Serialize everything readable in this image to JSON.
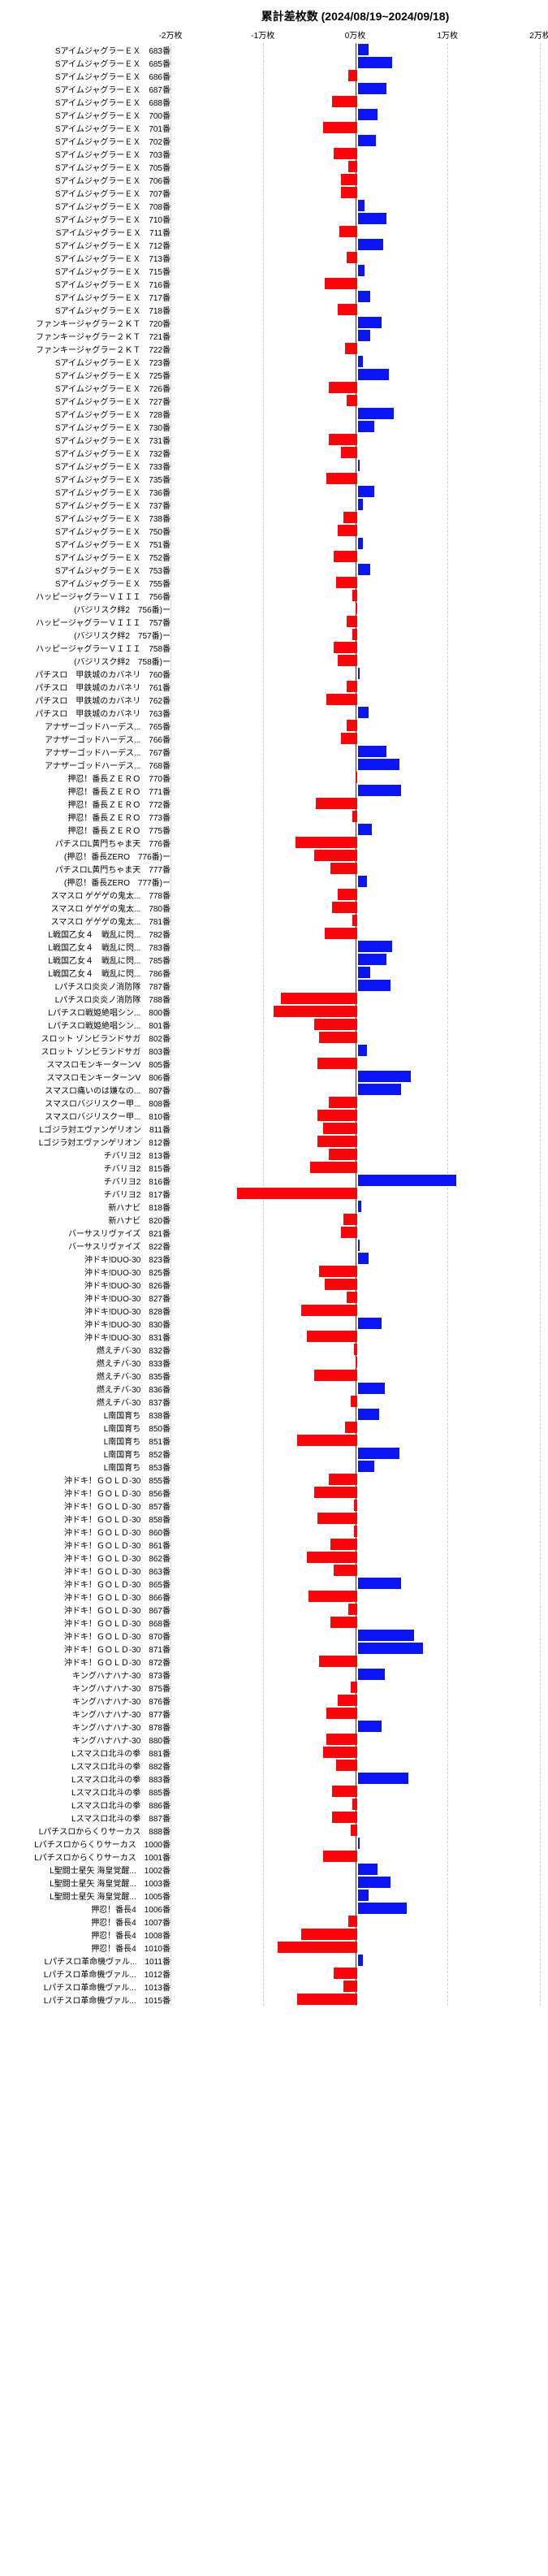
{
  "title": "累計差枚数 (2024/08/19~2024/09/18)",
  "axis": {
    "labels": [
      "-2万枚",
      "-1万枚",
      "0万枚",
      "1万枚",
      "2万枚"
    ],
    "positions_pct": [
      0,
      25,
      50,
      75,
      100
    ],
    "xlim": [
      -20000,
      20000
    ],
    "grid_color": "#cccccc",
    "zero_color": "#333333"
  },
  "colors": {
    "positive": "#0a16f5",
    "negative": "#fa0509",
    "background": "#ffffff"
  },
  "typography": {
    "label_fontsize": 10,
    "title_fontsize": 14
  },
  "rows": [
    {
      "label": "SアイムジャグラーＥＸ　683番",
      "value": 1200
    },
    {
      "label": "SアイムジャグラーＥＸ　685番",
      "value": 3800
    },
    {
      "label": "SアイムジャグラーＥＸ　686番",
      "value": -1000
    },
    {
      "label": "SアイムジャグラーＥＸ　687番",
      "value": 3200
    },
    {
      "label": "SアイムジャグラーＥＸ　688番",
      "value": -2800
    },
    {
      "label": "SアイムジャグラーＥＸ　700番",
      "value": 2200
    },
    {
      "label": "SアイムジャグラーＥＸ　701番",
      "value": -3800
    },
    {
      "label": "SアイムジャグラーＥＸ　702番",
      "value": 2000
    },
    {
      "label": "SアイムジャグラーＥＸ　703番",
      "value": -2600
    },
    {
      "label": "SアイムジャグラーＥＸ　705番",
      "value": -1000
    },
    {
      "label": "SアイムジャグラーＥＸ　706番",
      "value": -1800
    },
    {
      "label": "SアイムジャグラーＥＸ　707番",
      "value": -1800
    },
    {
      "label": "SアイムジャグラーＥＸ　708番",
      "value": 800
    },
    {
      "label": "SアイムジャグラーＥＸ　710番",
      "value": 3200
    },
    {
      "label": "SアイムジャグラーＥＸ　711番",
      "value": -2000
    },
    {
      "label": "SアイムジャグラーＥＸ　712番",
      "value": 2800
    },
    {
      "label": "SアイムジャグラーＥＸ　713番",
      "value": -1200
    },
    {
      "label": "SアイムジャグラーＥＸ　715番",
      "value": 800
    },
    {
      "label": "SアイムジャグラーＥＸ　716番",
      "value": -3600
    },
    {
      "label": "SアイムジャグラーＥＸ　717番",
      "value": 1400
    },
    {
      "label": "SアイムジャグラーＥＸ　718番",
      "value": -2200
    },
    {
      "label": "ファンキージャグラー２ＫＴ　720番",
      "value": 2600
    },
    {
      "label": "ファンキージャグラー２ＫＴ　721番",
      "value": 1400
    },
    {
      "label": "ファンキージャグラー２ＫＴ　722番",
      "value": -1400
    },
    {
      "label": "SアイムジャグラーＥＸ　723番",
      "value": 600
    },
    {
      "label": "SアイムジャグラーＥＸ　725番",
      "value": 3400
    },
    {
      "label": "SアイムジャグラーＥＸ　726番",
      "value": -3200
    },
    {
      "label": "SアイムジャグラーＥＸ　727番",
      "value": -1200
    },
    {
      "label": "SアイムジャグラーＥＸ　728番",
      "value": 4000
    },
    {
      "label": "SアイムジャグラーＥＸ　730番",
      "value": 1800
    },
    {
      "label": "SアイムジャグラーＥＸ　731番",
      "value": -3200
    },
    {
      "label": "SアイムジャグラーＥＸ　732番",
      "value": -1800
    },
    {
      "label": "SアイムジャグラーＥＸ　733番",
      "value": 200
    },
    {
      "label": "SアイムジャグラーＥＸ　735番",
      "value": -3400
    },
    {
      "label": "SアイムジャグラーＥＸ　736番",
      "value": 1800
    },
    {
      "label": "SアイムジャグラーＥＸ　737番",
      "value": 600
    },
    {
      "label": "SアイムジャグラーＥＸ　738番",
      "value": -1600
    },
    {
      "label": "SアイムジャグラーＥＸ　750番",
      "value": -2200
    },
    {
      "label": "SアイムジャグラーＥＸ　751番",
      "value": 600
    },
    {
      "label": "SアイムジャグラーＥＸ　752番",
      "value": -2600
    },
    {
      "label": "SアイムジャグラーＥＸ　753番",
      "value": 1400
    },
    {
      "label": "SアイムジャグラーＥＸ　755番",
      "value": -2400
    },
    {
      "label": "ハッピージャグラーＶＩＩＩ　756番",
      "value": -600
    },
    {
      "label": "(バジリスク絆2　756番)ー",
      "value": -200
    },
    {
      "label": "ハッピージャグラーＶＩＩＩ　757番",
      "value": -1200
    },
    {
      "label": "(バジリスク絆2　757番)ー",
      "value": -600
    },
    {
      "label": "ハッピージャグラーＶＩＩＩ　758番",
      "value": -2600
    },
    {
      "label": "(バジリスク絆2　758番)ー",
      "value": -2200
    },
    {
      "label": "パチスロ　甲鉄城のカバネリ　760番",
      "value": 200
    },
    {
      "label": "パチスロ　甲鉄城のカバネリ　761番",
      "value": -1200
    },
    {
      "label": "パチスロ　甲鉄城のカバネリ　762番",
      "value": -3400
    },
    {
      "label": "パチスロ　甲鉄城のカバネリ　763番",
      "value": 1200
    },
    {
      "label": "アナザーゴッドハーデス...　765番",
      "value": -1200
    },
    {
      "label": "アナザーゴッドハーデス...　766番",
      "value": -1800
    },
    {
      "label": "アナザーゴッドハーデス...　767番",
      "value": 3200
    },
    {
      "label": "アナザーゴッドハーデス...　768番",
      "value": 4600
    },
    {
      "label": "押忍！番長ＺＥＲＯ　770番",
      "value": -200
    },
    {
      "label": "押忍！番長ＺＥＲＯ　771番",
      "value": 4800
    },
    {
      "label": "押忍！番長ＺＥＲＯ　772番",
      "value": -4600
    },
    {
      "label": "押忍！番長ＺＥＲＯ　773番",
      "value": -600
    },
    {
      "label": "押忍！番長ＺＥＲＯ　775番",
      "value": 1600
    },
    {
      "label": "パチスロL黄門ちゃま天　776番",
      "value": -6800
    },
    {
      "label": "(押忍！番長ZERO　776番)ー",
      "value": -4800
    },
    {
      "label": "パチスロL黄門ちゃま天　777番",
      "value": -3000
    },
    {
      "label": "(押忍！番長ZERO　777番)ー",
      "value": 1000
    },
    {
      "label": "スマスロ ゲゲゲの鬼太...　778番",
      "value": -2200
    },
    {
      "label": "スマスロ ゲゲゲの鬼太...　780番",
      "value": -2800
    },
    {
      "label": "スマスロ ゲゲゲの鬼太...　781番",
      "value": -600
    },
    {
      "label": "L戦国乙女４　戦乱に閃...　782番",
      "value": -3600
    },
    {
      "label": "L戦国乙女４　戦乱に閃...　783番",
      "value": 3800
    },
    {
      "label": "L戦国乙女４　戦乱に閃...　785番",
      "value": 3200
    },
    {
      "label": "L戦国乙女４　戦乱に閃...　786番",
      "value": 1400
    },
    {
      "label": "Lパチスロ炎炎ノ消防隊　787番",
      "value": 3600
    },
    {
      "label": "Lパチスロ炎炎ノ消防隊　788番",
      "value": -8400
    },
    {
      "label": "Lパチスロ戦姫絶唱シン...　800番",
      "value": -9200
    },
    {
      "label": "Lパチスロ戦姫絶唱シン...　801番",
      "value": -4800
    },
    {
      "label": "スロット ゾンビランドサガ　802番",
      "value": -4200
    },
    {
      "label": "スロット ゾンビランドサガ　803番",
      "value": 1000
    },
    {
      "label": "スマスロモンキーターンV　805番",
      "value": -4400
    },
    {
      "label": "スマスロモンキーターンV　806番",
      "value": 5800
    },
    {
      "label": "スマスロ痛いのは嫌なの...　807番",
      "value": 4800
    },
    {
      "label": "スマスロバジリスクー甲...　808番",
      "value": -3200
    },
    {
      "label": "スマスロバジリスクー甲...　810番",
      "value": -4400
    },
    {
      "label": "Lゴジラ対エヴァンゲリオン　811番",
      "value": -3800
    },
    {
      "label": "Lゴジラ対エヴァンゲリオン　812番",
      "value": -4400
    },
    {
      "label": "チバリヨ2　813番",
      "value": -3200
    },
    {
      "label": "チバリヨ2　815番",
      "value": -5200
    },
    {
      "label": "チバリヨ2　816番",
      "value": 10800
    },
    {
      "label": "チバリヨ2　817番",
      "value": -13200
    },
    {
      "label": "新ハナビ　818番",
      "value": 400
    },
    {
      "label": "新ハナビ　820番",
      "value": -1600
    },
    {
      "label": "バーサスリヴァイズ　821番",
      "value": -1800
    },
    {
      "label": "バーサスリヴァイズ　822番",
      "value": 200
    },
    {
      "label": "沖ドキ!DUO-30　823番",
      "value": 1200
    },
    {
      "label": "沖ドキ!DUO-30　825番",
      "value": -4200
    },
    {
      "label": "沖ドキ!DUO-30　826番",
      "value": -3600
    },
    {
      "label": "沖ドキ!DUO-30　827番",
      "value": -1200
    },
    {
      "label": "沖ドキ!DUO-30　828番",
      "value": -6200
    },
    {
      "label": "沖ドキ!DUO-30　830番",
      "value": 2600
    },
    {
      "label": "沖ドキ!DUO-30　831番",
      "value": -5600
    },
    {
      "label": "燃えチバ-30　832番",
      "value": -400
    },
    {
      "label": "燃えチバ-30　833番",
      "value": -200
    },
    {
      "label": "燃えチバ-30　835番",
      "value": -4800
    },
    {
      "label": "燃えチバ-30　836番",
      "value": 3000
    },
    {
      "label": "燃えチバ-30　837番",
      "value": -800
    },
    {
      "label": "L南国育ち　838番",
      "value": 2400
    },
    {
      "label": "L南国育ち　850番",
      "value": -1400
    },
    {
      "label": "L南国育ち　851番",
      "value": -6600
    },
    {
      "label": "L南国育ち　852番",
      "value": 4600
    },
    {
      "label": "L南国育ち　853番",
      "value": 1800
    },
    {
      "label": "沖ドキ！ＧＯＬＤ-30　855番",
      "value": -3200
    },
    {
      "label": "沖ドキ！ＧＯＬＤ-30　856番",
      "value": -4800
    },
    {
      "label": "沖ドキ！ＧＯＬＤ-30　857番",
      "value": -400
    },
    {
      "label": "沖ドキ！ＧＯＬＤ-30　858番",
      "value": -4400
    },
    {
      "label": "沖ドキ！ＧＯＬＤ-30　860番",
      "value": -400
    },
    {
      "label": "沖ドキ！ＧＯＬＤ-30　861番",
      "value": -3000
    },
    {
      "label": "沖ドキ！ＧＯＬＤ-30　862番",
      "value": -5600
    },
    {
      "label": "沖ドキ！ＧＯＬＤ-30　863番",
      "value": -2600
    },
    {
      "label": "沖ドキ！ＧＯＬＤ-30　865番",
      "value": 4800
    },
    {
      "label": "沖ドキ！ＧＯＬＤ-30　866番",
      "value": -5400
    },
    {
      "label": "沖ドキ！ＧＯＬＤ-30　867番",
      "value": -1000
    },
    {
      "label": "沖ドキ！ＧＯＬＤ-30　868番",
      "value": -3000
    },
    {
      "label": "沖ドキ！ＧＯＬＤ-30　870番",
      "value": 6200
    },
    {
      "label": "沖ドキ！ＧＯＬＤ-30　871番",
      "value": 7200
    },
    {
      "label": "沖ドキ！ＧＯＬＤ-30　872番",
      "value": -4200
    },
    {
      "label": "キングハナハナ-30　873番",
      "value": 3000
    },
    {
      "label": "キングハナハナ-30　875番",
      "value": -800
    },
    {
      "label": "キングハナハナ-30　876番",
      "value": -2200
    },
    {
      "label": "キングハナハナ-30　877番",
      "value": -3400
    },
    {
      "label": "キングハナハナ-30　878番",
      "value": 2600
    },
    {
      "label": "キングハナハナ-30　880番",
      "value": -3400
    },
    {
      "label": "Lスマスロ北斗の拳　881番",
      "value": -3800
    },
    {
      "label": "Lスマスロ北斗の拳　882番",
      "value": -2400
    },
    {
      "label": "Lスマスロ北斗の拳　883番",
      "value": 5600
    },
    {
      "label": "Lスマスロ北斗の拳　885番",
      "value": -2800
    },
    {
      "label": "Lスマスロ北斗の拳　886番",
      "value": -600
    },
    {
      "label": "Lスマスロ北斗の拳　887番",
      "value": -2800
    },
    {
      "label": "Lパチスロからくりサーカス　888番",
      "value": -800
    },
    {
      "label": "Lパチスロからくりサーカス　1000番",
      "value": 200
    },
    {
      "label": "Lパチスロからくりサーカス　1001番",
      "value": -3800
    },
    {
      "label": "L聖闘士星矢 海皇覚醒...　1002番",
      "value": 2200
    },
    {
      "label": "L聖闘士星矢 海皇覚醒...　1003番",
      "value": 3600
    },
    {
      "label": "L聖闘士星矢 海皇覚醒...　1005番",
      "value": 1200
    },
    {
      "label": "押忍！番長4　1006番",
      "value": 5400
    },
    {
      "label": "押忍！番長4　1007番",
      "value": -1000
    },
    {
      "label": "押忍！番長4　1008番",
      "value": -6200
    },
    {
      "label": "押忍！番長4　1010番",
      "value": -8800
    },
    {
      "label": "Lパチスロ革命機ヴァル...　1011番",
      "value": 600
    },
    {
      "label": "Lパチスロ革命機ヴァル...　1012番",
      "value": -2600
    },
    {
      "label": "Lパチスロ革命機ヴァル...　1013番",
      "value": -1600
    },
    {
      "label": "Lパチスロ革命機ヴァル...　1015番",
      "value": -6600
    }
  ]
}
